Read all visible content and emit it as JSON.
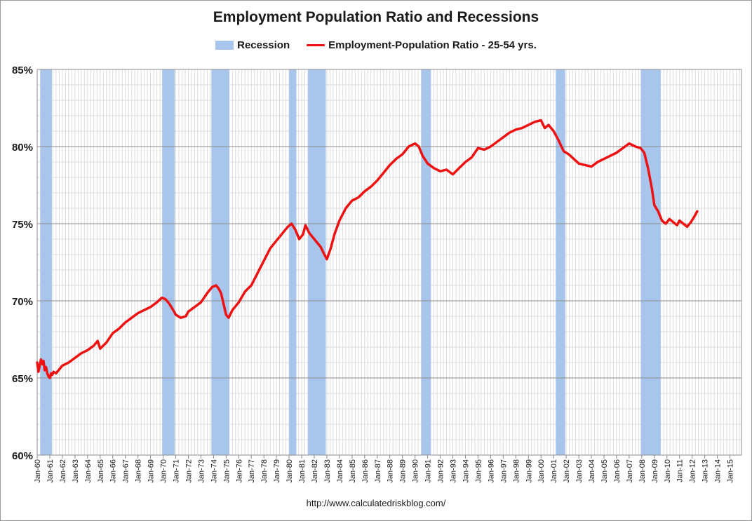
{
  "chart_data": {
    "type": "line",
    "title": "Employment Population Ratio and Recessions",
    "source": "http://www.calculatedriskblog.com/",
    "legend_position": "top-center",
    "legend": [
      {
        "name": "Recession",
        "kind": "band",
        "color": "#a8c6ec"
      },
      {
        "name": "Employment-Population Ratio - 25-54 yrs.",
        "kind": "line",
        "color": "#ee1111"
      }
    ],
    "x_range": [
      1960.0,
      2015.917
    ],
    "ylim": [
      60,
      85
    ],
    "y_ticks": [
      60,
      65,
      70,
      75,
      80,
      85
    ],
    "y_tick_labels": [
      "60%",
      "65%",
      "70%",
      "75%",
      "80%",
      "85%"
    ],
    "x_ticks": [
      1960,
      1961,
      1962,
      1963,
      1964,
      1965,
      1966,
      1967,
      1968,
      1969,
      1970,
      1971,
      1972,
      1973,
      1974,
      1975,
      1976,
      1977,
      1978,
      1979,
      1980,
      1981,
      1982,
      1983,
      1984,
      1985,
      1986,
      1987,
      1988,
      1989,
      1990,
      1991,
      1992,
      1993,
      1994,
      1995,
      1996,
      1997,
      1998,
      1999,
      2000,
      2001,
      2002,
      2003,
      2004,
      2005,
      2006,
      2007,
      2008,
      2009,
      2010,
      2011,
      2012,
      2013,
      2014,
      2015
    ],
    "x_tick_labels": [
      "Jan-60",
      "Jan-61",
      "Jan-62",
      "Jan-63",
      "Jan-64",
      "Jan-65",
      "Jan-66",
      "Jan-67",
      "Jan-68",
      "Jan-69",
      "Jan-70",
      "Jan-71",
      "Jan-72",
      "Jan-73",
      "Jan-74",
      "Jan-75",
      "Jan-76",
      "Jan-77",
      "Jan-78",
      "Jan-79",
      "Jan-80",
      "Jan-81",
      "Jan-82",
      "Jan-83",
      "Jan-84",
      "Jan-85",
      "Jan-86",
      "Jan-87",
      "Jan-88",
      "Jan-89",
      "Jan-90",
      "Jan-91",
      "Jan-92",
      "Jan-93",
      "Jan-94",
      "Jan-95",
      "Jan-96",
      "Jan-97",
      "Jan-98",
      "Jan-99",
      "Jan-00",
      "Jan-01",
      "Jan-02",
      "Jan-03",
      "Jan-04",
      "Jan-05",
      "Jan-06",
      "Jan-07",
      "Jan-08",
      "Jan-09",
      "Jan-10",
      "Jan-11",
      "Jan-12",
      "Jan-13",
      "Jan-14",
      "Jan-15"
    ],
    "recessions": [
      {
        "start": 1960.25,
        "end": 1961.17
      },
      {
        "start": 1969.92,
        "end": 1970.92
      },
      {
        "start": 1973.83,
        "end": 1975.25
      },
      {
        "start": 1980.0,
        "end": 1980.58
      },
      {
        "start": 1981.5,
        "end": 1982.92
      },
      {
        "start": 1990.5,
        "end": 1991.25
      },
      {
        "start": 2001.17,
        "end": 2001.92
      },
      {
        "start": 2007.92,
        "end": 2009.5
      }
    ],
    "series": [
      {
        "name": "Employment-Population Ratio - 25-54 yrs.",
        "x": [
          1960.0,
          1960.1,
          1960.2,
          1960.3,
          1960.4,
          1960.5,
          1960.6,
          1960.7,
          1960.8,
          1960.9,
          1961.0,
          1961.1,
          1961.2,
          1961.3,
          1961.5,
          1961.7,
          1962.0,
          1962.5,
          1963.0,
          1963.5,
          1964.0,
          1964.5,
          1964.8,
          1965.0,
          1965.5,
          1966.0,
          1966.5,
          1967.0,
          1967.5,
          1968.0,
          1968.5,
          1969.0,
          1969.5,
          1969.9,
          1970.2,
          1970.5,
          1970.8,
          1971.0,
          1971.4,
          1971.8,
          1972.0,
          1972.5,
          1973.0,
          1973.5,
          1973.9,
          1974.2,
          1974.4,
          1974.6,
          1974.8,
          1975.0,
          1975.2,
          1975.5,
          1976.0,
          1976.5,
          1977.0,
          1977.5,
          1978.0,
          1978.5,
          1979.0,
          1979.5,
          1979.9,
          1980.2,
          1980.5,
          1980.8,
          1981.1,
          1981.3,
          1981.6,
          1982.0,
          1982.5,
          1982.8,
          1983.0,
          1983.3,
          1983.6,
          1984.0,
          1984.5,
          1985.0,
          1985.5,
          1986.0,
          1986.5,
          1987.0,
          1987.5,
          1988.0,
          1988.5,
          1989.0,
          1989.5,
          1990.0,
          1990.3,
          1990.6,
          1991.0,
          1991.5,
          1992.0,
          1992.5,
          1993.0,
          1993.5,
          1994.0,
          1994.5,
          1995.0,
          1995.5,
          1996.0,
          1996.5,
          1997.0,
          1997.5,
          1998.0,
          1998.5,
          1999.0,
          1999.5,
          2000.0,
          2000.3,
          2000.6,
          2001.0,
          2001.4,
          2001.8,
          2002.2,
          2002.6,
          2003.0,
          2003.5,
          2004.0,
          2004.5,
          2005.0,
          2005.5,
          2006.0,
          2006.5,
          2007.0,
          2007.5,
          2007.9,
          2008.2,
          2008.5,
          2008.8,
          2009.0,
          2009.3,
          2009.6,
          2009.9,
          2010.2,
          2010.5,
          2010.8,
          2011.0,
          2011.3,
          2011.6,
          2011.9,
          2012.2,
          2012.4
        ],
        "values": [
          66.0,
          65.4,
          65.8,
          66.2,
          65.9,
          66.1,
          65.5,
          65.7,
          65.3,
          65.1,
          65.0,
          65.3,
          65.2,
          65.4,
          65.3,
          65.5,
          65.8,
          66.0,
          66.3,
          66.6,
          66.8,
          67.1,
          67.4,
          66.9,
          67.3,
          67.9,
          68.2,
          68.6,
          68.9,
          69.2,
          69.4,
          69.6,
          69.9,
          70.2,
          70.1,
          69.8,
          69.4,
          69.1,
          68.9,
          69.0,
          69.3,
          69.6,
          69.9,
          70.5,
          70.9,
          71.0,
          70.8,
          70.5,
          69.8,
          69.1,
          68.9,
          69.4,
          69.9,
          70.6,
          71.0,
          71.8,
          72.6,
          73.4,
          73.9,
          74.4,
          74.8,
          75.0,
          74.6,
          74.0,
          74.3,
          74.9,
          74.4,
          74.0,
          73.5,
          73.0,
          72.7,
          73.4,
          74.3,
          75.2,
          76.0,
          76.5,
          76.7,
          77.1,
          77.4,
          77.8,
          78.3,
          78.8,
          79.2,
          79.5,
          80.0,
          80.2,
          80.0,
          79.4,
          78.9,
          78.6,
          78.4,
          78.5,
          78.2,
          78.6,
          79.0,
          79.3,
          79.9,
          79.8,
          80.0,
          80.3,
          80.6,
          80.9,
          81.1,
          81.2,
          81.4,
          81.6,
          81.7,
          81.2,
          81.4,
          81.0,
          80.4,
          79.7,
          79.5,
          79.2,
          78.9,
          78.8,
          78.7,
          79.0,
          79.2,
          79.4,
          79.6,
          79.9,
          80.2,
          80.0,
          79.9,
          79.6,
          78.6,
          77.3,
          76.2,
          75.8,
          75.2,
          75.0,
          75.3,
          75.1,
          74.9,
          75.2,
          75.0,
          74.8,
          75.1,
          75.5,
          75.8
        ]
      }
    ]
  }
}
